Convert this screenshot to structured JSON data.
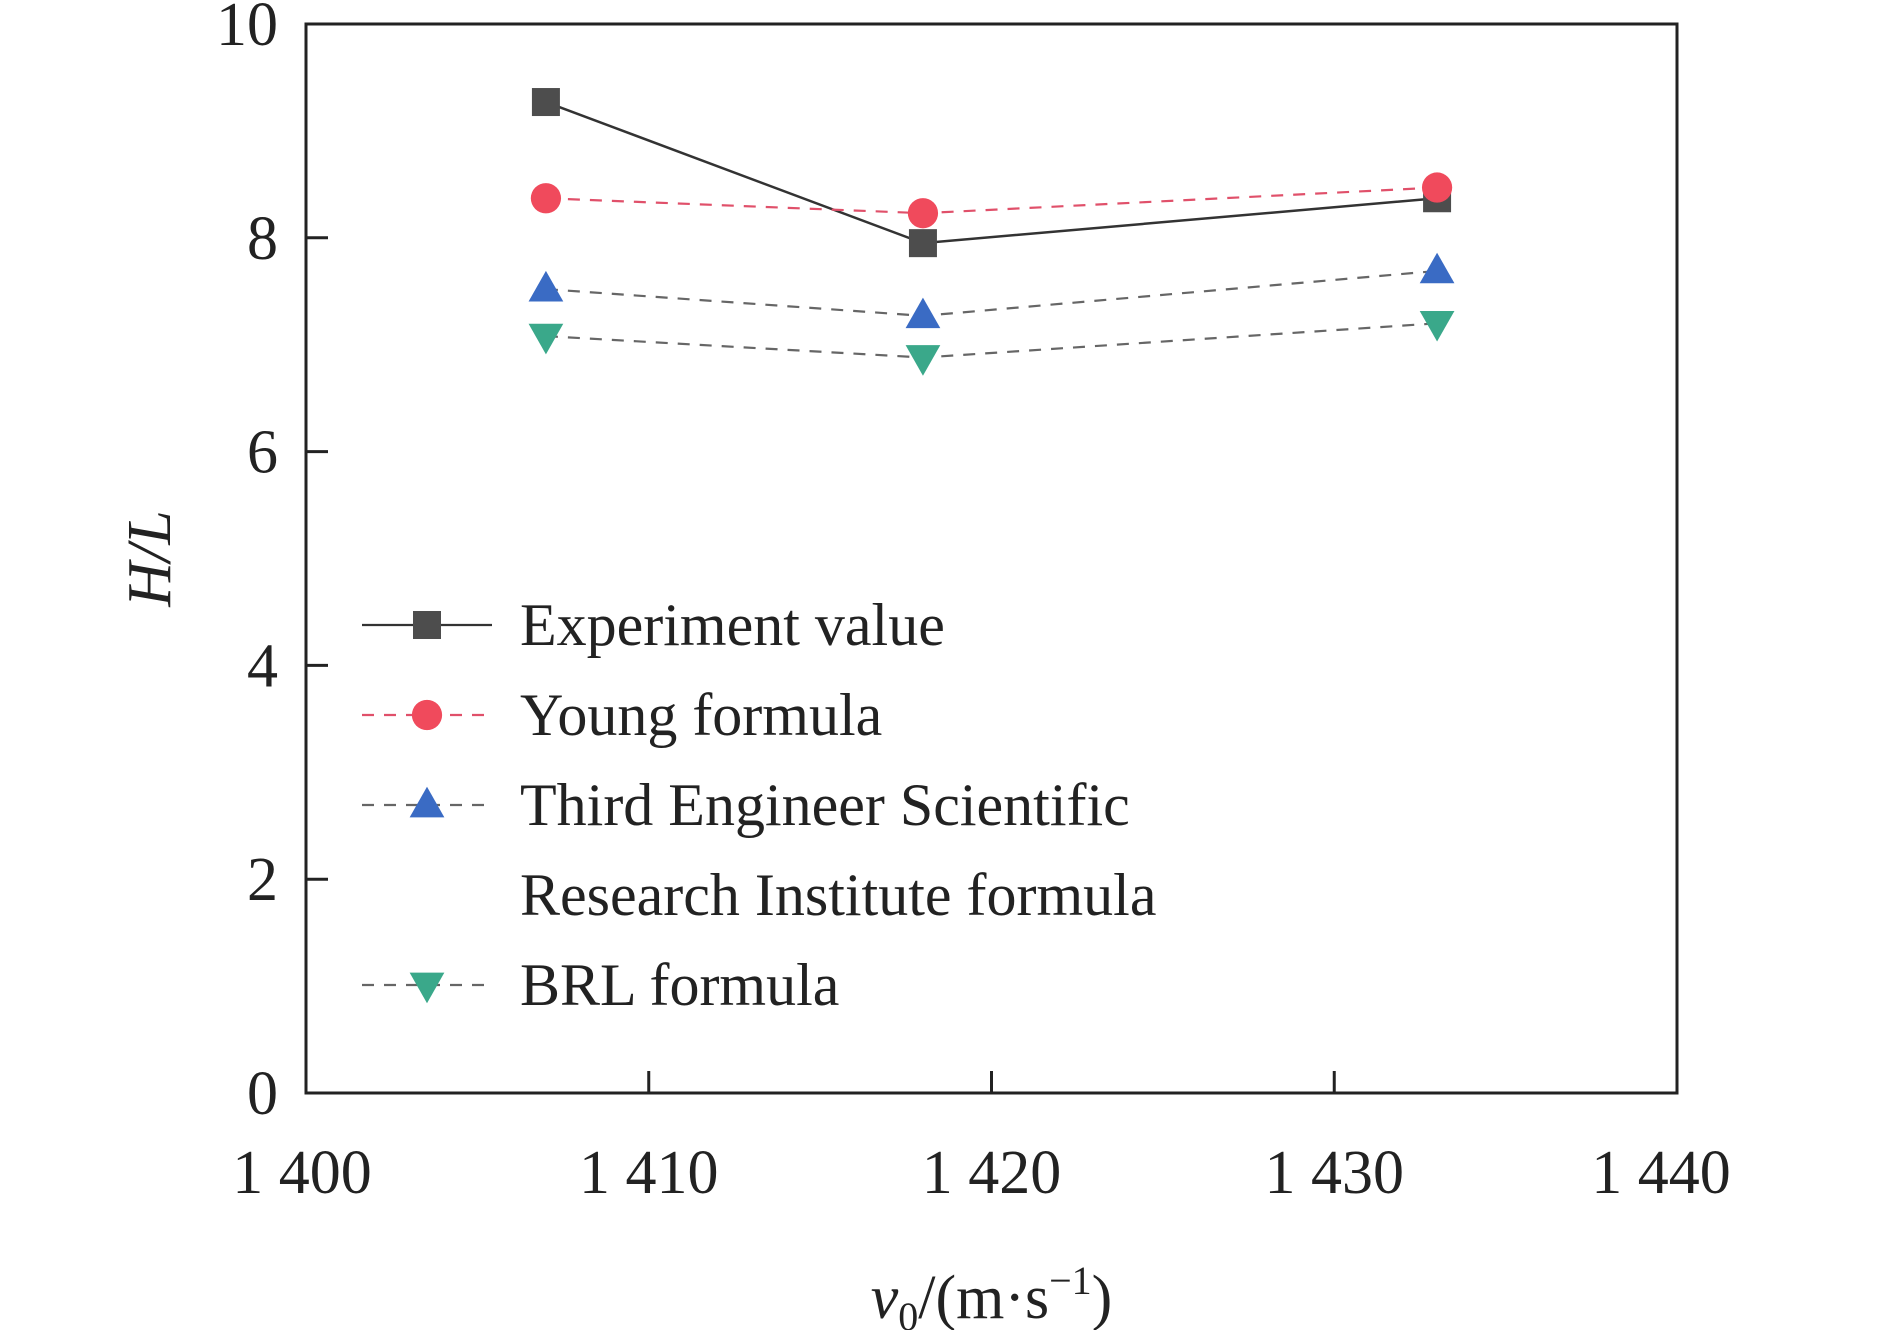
{
  "chart_data": {
    "type": "line",
    "title": "",
    "xlabel": {
      "base": "v",
      "subscript": "0",
      "unit_open": "/(m·s",
      "superscript": "−1",
      "unit_close": ")"
    },
    "ylabel": "H/L",
    "xlim": [
      1400,
      1440
    ],
    "ylim": [
      0,
      10
    ],
    "x_ticks": [
      1400,
      1410,
      1420,
      1430,
      1440
    ],
    "x_tick_labels": [
      "1 400",
      "1 410",
      "1 420",
      "1 430",
      "1 440"
    ],
    "y_ticks": [
      0,
      2,
      4,
      6,
      8,
      10
    ],
    "y_tick_labels": [
      "0",
      "2",
      "4",
      "6",
      "8",
      "10"
    ],
    "grid": false,
    "legend_position": "lower-left",
    "series": [
      {
        "name": "Experiment value",
        "marker": "square",
        "line": "solid",
        "color": "#4d4d4d",
        "line_color": "#333333",
        "x": [
          1407,
          1418,
          1433
        ],
        "y": [
          9.27,
          7.95,
          8.37
        ]
      },
      {
        "name": "Young formula",
        "marker": "circle",
        "line": "dashed",
        "color": "#f04a5c",
        "line_color": "#e0506a",
        "x": [
          1407,
          1418,
          1433
        ],
        "y": [
          8.37,
          8.23,
          8.47
        ]
      },
      {
        "name": "Third Engineer Scientific Research Institute formula",
        "name_lines": [
          "Third Engineer Scientific",
          "Research Institute formula"
        ],
        "marker": "triangle-up",
        "line": "dashed",
        "color": "#3a6bc4",
        "line_color": "#666666",
        "x": [
          1407,
          1418,
          1433
        ],
        "y": [
          7.52,
          7.27,
          7.69
        ]
      },
      {
        "name": "BRL formula",
        "marker": "triangle-down",
        "line": "dashed",
        "color": "#3aa88a",
        "line_color": "#666666",
        "x": [
          1407,
          1418,
          1433
        ],
        "y": [
          7.08,
          6.88,
          7.2
        ]
      }
    ]
  }
}
